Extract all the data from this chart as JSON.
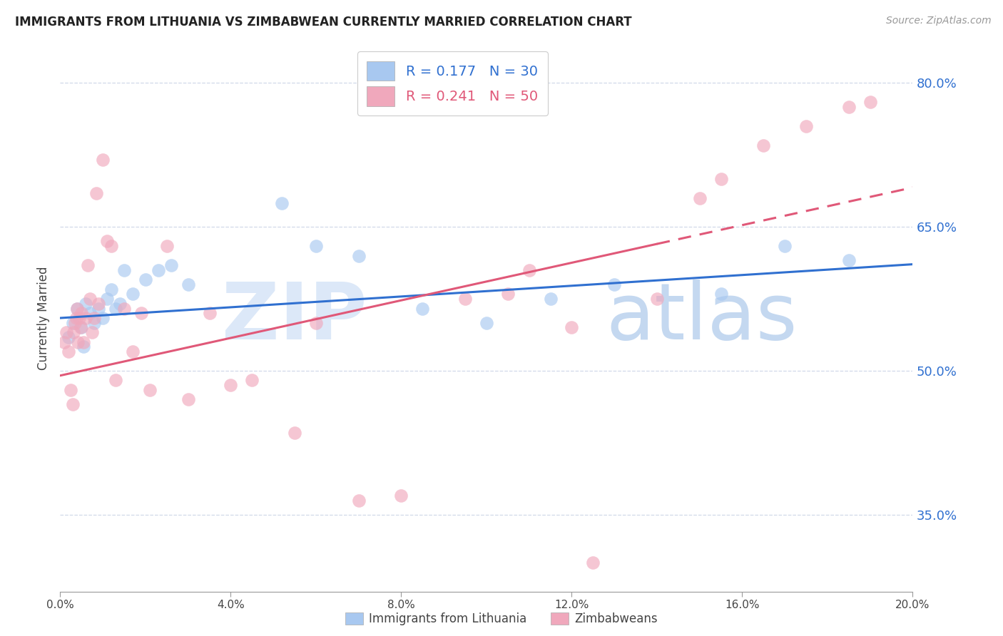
{
  "title": "IMMIGRANTS FROM LITHUANIA VS ZIMBABWEAN CURRENTLY MARRIED CORRELATION CHART",
  "source": "Source: ZipAtlas.com",
  "ylabel": "Currently Married",
  "xlim": [
    0.0,
    20.0
  ],
  "ylim": [
    27.0,
    84.0
  ],
  "yticks": [
    35.0,
    50.0,
    65.0,
    80.0
  ],
  "xticks": [
    0.0,
    4.0,
    8.0,
    12.0,
    16.0,
    20.0
  ],
  "legend_R1": "0.177",
  "legend_N1": "30",
  "legend_R2": "0.241",
  "legend_N2": "50",
  "blue_color": "#a8c8f0",
  "pink_color": "#f0a8bc",
  "blue_line_color": "#3070d0",
  "pink_line_color": "#e05878",
  "blue_scatter_x": [
    0.2,
    0.3,
    0.4,
    0.5,
    0.6,
    0.7,
    0.8,
    0.9,
    1.0,
    1.1,
    1.2,
    1.4,
    1.5,
    1.7,
    2.0,
    2.3,
    2.6,
    3.0,
    5.2,
    6.0,
    7.0,
    8.5,
    10.0,
    11.5,
    13.0,
    15.5,
    17.0,
    18.5,
    0.55,
    1.3
  ],
  "blue_scatter_y": [
    53.5,
    55.0,
    56.5,
    54.5,
    57.0,
    56.0,
    55.0,
    56.5,
    55.5,
    57.5,
    58.5,
    57.0,
    60.5,
    58.0,
    59.5,
    60.5,
    61.0,
    59.0,
    67.5,
    63.0,
    62.0,
    56.5,
    55.0,
    57.5,
    59.0,
    58.0,
    63.0,
    61.5,
    52.5,
    56.5
  ],
  "pink_scatter_x": [
    0.1,
    0.15,
    0.2,
    0.25,
    0.3,
    0.32,
    0.35,
    0.38,
    0.4,
    0.42,
    0.45,
    0.48,
    0.5,
    0.55,
    0.6,
    0.65,
    0.7,
    0.75,
    0.8,
    0.85,
    0.9,
    1.0,
    1.1,
    1.2,
    1.3,
    1.5,
    1.7,
    1.9,
    2.1,
    2.5,
    3.0,
    3.5,
    4.0,
    4.5,
    5.5,
    6.0,
    7.0,
    8.0,
    9.5,
    10.5,
    11.0,
    12.0,
    12.5,
    14.0,
    15.0,
    15.5,
    16.5,
    17.5,
    18.5,
    19.0
  ],
  "pink_scatter_y": [
    53.0,
    54.0,
    52.0,
    48.0,
    46.5,
    54.0,
    55.0,
    55.5,
    56.5,
    53.0,
    55.5,
    54.5,
    56.0,
    53.0,
    55.5,
    61.0,
    57.5,
    54.0,
    55.5,
    68.5,
    57.0,
    72.0,
    63.5,
    63.0,
    49.0,
    56.5,
    52.0,
    56.0,
    48.0,
    63.0,
    47.0,
    56.0,
    48.5,
    49.0,
    43.5,
    55.0,
    36.5,
    37.0,
    57.5,
    58.0,
    60.5,
    54.5,
    30.0,
    57.5,
    68.0,
    70.0,
    73.5,
    75.5,
    77.5,
    78.0
  ]
}
